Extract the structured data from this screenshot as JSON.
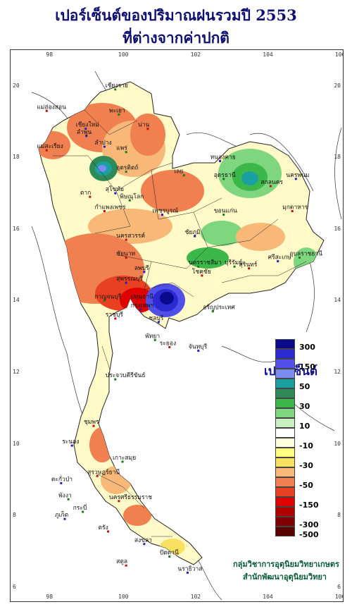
{
  "title": {
    "line1": "เปอร์เซ็นต์ของปริมาณฝนรวมปี  2553",
    "line2": "ที่ต่างจากค่าปกติ"
  },
  "axis": {
    "lon_ticks": [
      "98",
      "100",
      "102",
      "104",
      "106"
    ],
    "lat_ticks": [
      "20",
      "18",
      "16",
      "14",
      "12",
      "10",
      "8",
      "6"
    ]
  },
  "legend": {
    "title": "เปอร์เซ็นต์",
    "classes": [
      {
        "color": "#0a0a8c",
        "label": "300"
      },
      {
        "color": "#2a2ad0",
        "label": ""
      },
      {
        "color": "#5050e8",
        "label": "150"
      },
      {
        "color": "#7a8cf0",
        "label": ""
      },
      {
        "color": "#1aa0a0",
        "label": "50"
      },
      {
        "color": "#2e8b57",
        "label": ""
      },
      {
        "color": "#3cb84a",
        "label": "30"
      },
      {
        "color": "#7ed67e",
        "label": ""
      },
      {
        "color": "#c8f0c0",
        "label": "10"
      },
      {
        "color": "#ffffff",
        "label": ""
      },
      {
        "color": "#ffffe0",
        "label": "-10"
      },
      {
        "color": "#ffff80",
        "label": ""
      },
      {
        "color": "#f8e060",
        "label": "-30"
      },
      {
        "color": "#f8b878",
        "label": ""
      },
      {
        "color": "#f08050",
        "label": "-50"
      },
      {
        "color": "#e84020",
        "label": ""
      },
      {
        "color": "#e00000",
        "label": "-150"
      },
      {
        "color": "#b00000",
        "label": ""
      },
      {
        "color": "#800000",
        "label": "-300"
      },
      {
        "color": "#580000",
        "label": "-500"
      }
    ]
  },
  "credit": {
    "line1": "กลุ่มวิชาการอุตุนิยมวิทยาเกษตร",
    "line2": "สำนักพัฒนาอุตุนิยมวิทยา"
  },
  "places": [
    {
      "name": "เชียงราย",
      "lon": 99.8,
      "lat": 19.9
    },
    {
      "name": "แม่ฮ่องสอน",
      "lon": 97.9,
      "lat": 19.3
    },
    {
      "name": "เชียงใหม่",
      "lon": 98.98,
      "lat": 18.8
    },
    {
      "name": "พะเยา",
      "lon": 99.9,
      "lat": 19.2
    },
    {
      "name": "น่าน",
      "lon": 100.7,
      "lat": 18.8
    },
    {
      "name": "ลำปาง",
      "lon": 99.5,
      "lat": 18.3
    },
    {
      "name": "แพร่",
      "lon": 100.1,
      "lat": 18.15
    },
    {
      "name": "แม่สะเรียง",
      "lon": 97.9,
      "lat": 18.2
    },
    {
      "name": "ลำพูน",
      "lon": 99.0,
      "lat": 18.6
    },
    {
      "name": "อุตรดิตถ์",
      "lon": 100.1,
      "lat": 17.6
    },
    {
      "name": "ตาก",
      "lon": 99.1,
      "lat": 16.9
    },
    {
      "name": "สุโขทัย",
      "lon": 99.8,
      "lat": 17.0
    },
    {
      "name": "พิษณุโลก",
      "lon": 100.2,
      "lat": 16.8
    },
    {
      "name": "กำแพงเพชร",
      "lon": 99.5,
      "lat": 16.5
    },
    {
      "name": "หนองคาย",
      "lon": 102.7,
      "lat": 17.9
    },
    {
      "name": "อุดรธานี",
      "lon": 102.8,
      "lat": 17.4
    },
    {
      "name": "สกลนคร",
      "lon": 104.1,
      "lat": 17.2
    },
    {
      "name": "นครพนม",
      "lon": 104.8,
      "lat": 17.4
    },
    {
      "name": "เลย",
      "lon": 101.7,
      "lat": 17.5
    },
    {
      "name": "มุกดาหาร",
      "lon": 104.7,
      "lat": 16.5
    },
    {
      "name": "เพชรบูรณ์",
      "lon": 101.1,
      "lat": 16.4
    },
    {
      "name": "ขอนแก่น",
      "lon": 102.8,
      "lat": 16.4
    },
    {
      "name": "นครสวรรค์",
      "lon": 100.1,
      "lat": 15.7
    },
    {
      "name": "ชัยภูมิ",
      "lon": 102.0,
      "lat": 15.8
    },
    {
      "name": "อุบลราชธานี",
      "lon": 104.9,
      "lat": 15.2
    },
    {
      "name": "ชัยนาท",
      "lon": 100.1,
      "lat": 15.2
    },
    {
      "name": "ลพบุรี",
      "lon": 100.6,
      "lat": 14.8
    },
    {
      "name": "นครราชสีมา",
      "lon": 102.1,
      "lat": 14.95
    },
    {
      "name": "สุรินทร์",
      "lon": 103.5,
      "lat": 14.9
    },
    {
      "name": "ศรีสะเกษ",
      "lon": 104.3,
      "lat": 15.1
    },
    {
      "name": "บุรีรัมย์",
      "lon": 103.1,
      "lat": 14.95
    },
    {
      "name": "โชคชัย",
      "lon": 102.2,
      "lat": 14.7
    },
    {
      "name": "สุพรรณบุรี",
      "lon": 100.1,
      "lat": 14.5
    },
    {
      "name": "กาญจนบุรี",
      "lon": 99.5,
      "lat": 14.0
    },
    {
      "name": "ปทุมธานี",
      "lon": 100.5,
      "lat": 14.0
    },
    {
      "name": "กรุงเทพฯ",
      "lon": 100.5,
      "lat": 13.75
    },
    {
      "name": "อรัญประเทศ",
      "lon": 102.5,
      "lat": 13.7
    },
    {
      "name": "ราชบุรี",
      "lon": 99.8,
      "lat": 13.5
    },
    {
      "name": "ชลบุรี",
      "lon": 101.0,
      "lat": 13.4
    },
    {
      "name": "พัทยา",
      "lon": 100.9,
      "lat": 12.9
    },
    {
      "name": "ระยอง",
      "lon": 101.3,
      "lat": 12.7
    },
    {
      "name": "จันทบุรี",
      "lon": 102.1,
      "lat": 12.6
    },
    {
      "name": "ประจวบคีรีขันธ์",
      "lon": 99.8,
      "lat": 11.8
    },
    {
      "name": "ชุมพร",
      "lon": 99.2,
      "lat": 10.5
    },
    {
      "name": "ระนอง",
      "lon": 98.6,
      "lat": 9.95
    },
    {
      "name": "เกาะสมุย",
      "lon": 100.0,
      "lat": 9.5
    },
    {
      "name": "สุราษฎร์ธานี",
      "lon": 99.3,
      "lat": 9.1
    },
    {
      "name": "ตะกั่วป่า",
      "lon": 98.3,
      "lat": 8.9
    },
    {
      "name": "พังงา",
      "lon": 98.5,
      "lat": 8.45
    },
    {
      "name": "นครศรีธรรมราช",
      "lon": 99.9,
      "lat": 8.4
    },
    {
      "name": "ภูเก็ต",
      "lon": 98.4,
      "lat": 7.9
    },
    {
      "name": "กระบี่",
      "lon": 98.9,
      "lat": 8.1
    },
    {
      "name": "ตรัง",
      "lon": 99.6,
      "lat": 7.55
    },
    {
      "name": "สงขลา",
      "lon": 100.6,
      "lat": 7.2
    },
    {
      "name": "ปัตตานี",
      "lon": 101.3,
      "lat": 6.85
    },
    {
      "name": "สตูล",
      "lon": 100.1,
      "lat": 6.6
    },
    {
      "name": "นราธิวาส",
      "lon": 101.8,
      "lat": 6.4
    }
  ]
}
